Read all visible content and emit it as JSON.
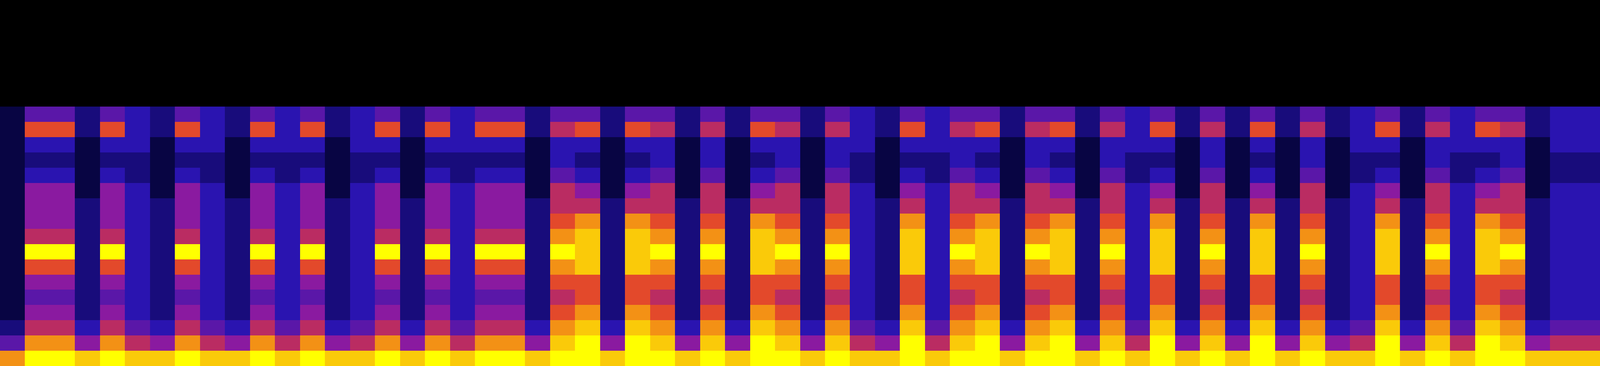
{
  "chart_data": {
    "type": "heatmap",
    "tick_labels": false,
    "zlim": [
      0,
      10
    ],
    "z": [
      [
        0,
        0,
        0,
        0,
        0,
        0,
        0,
        1,
        1,
        1,
        1,
        1,
        1,
        1,
        1,
        1,
        1,
        1,
        1,
        1,
        1,
        2,
        4,
        8
      ],
      [
        0,
        0,
        0,
        0,
        0,
        0,
        0,
        4,
        7,
        3,
        2,
        3,
        5,
        5,
        5,
        6,
        10,
        7,
        5,
        4,
        5,
        6,
        8,
        10
      ],
      [
        0,
        0,
        0,
        0,
        0,
        0,
        0,
        4,
        7,
        3,
        2,
        3,
        5,
        5,
        5,
        6,
        10,
        7,
        5,
        4,
        5,
        6,
        8,
        10
      ],
      [
        0,
        0,
        0,
        0,
        0,
        0,
        0,
        2,
        2,
        1,
        1,
        1,
        1,
        2,
        2,
        2,
        2,
        2,
        2,
        2,
        2,
        3,
        5,
        9
      ],
      [
        0,
        0,
        0,
        0,
        0,
        0,
        0,
        4,
        7,
        3,
        2,
        3,
        5,
        5,
        5,
        6,
        10,
        7,
        5,
        4,
        5,
        6,
        8,
        10
      ],
      [
        0,
        0,
        0,
        0,
        0,
        0,
        0,
        3,
        3,
        3,
        2,
        2,
        3,
        3,
        3,
        3,
        3,
        3,
        3,
        3,
        3,
        4,
        6,
        9
      ],
      [
        0,
        0,
        0,
        0,
        0,
        0,
        0,
        2,
        2,
        1,
        1,
        1,
        1,
        2,
        2,
        2,
        2,
        2,
        2,
        2,
        2,
        3,
        5,
        9
      ],
      [
        0,
        0,
        0,
        0,
        0,
        0,
        0,
        4,
        7,
        3,
        2,
        3,
        5,
        5,
        5,
        6,
        10,
        7,
        5,
        4,
        5,
        6,
        8,
        10
      ],
      [
        0,
        0,
        0,
        0,
        0,
        0,
        0,
        3,
        3,
        3,
        2,
        2,
        3,
        3,
        3,
        3,
        3,
        3,
        3,
        3,
        3,
        4,
        6,
        9
      ],
      [
        0,
        0,
        0,
        0,
        0,
        0,
        0,
        2,
        2,
        1,
        1,
        1,
        1,
        2,
        2,
        2,
        2,
        2,
        2,
        2,
        2,
        3,
        5,
        9
      ],
      [
        0,
        0,
        0,
        0,
        0,
        0,
        0,
        4,
        7,
        3,
        2,
        3,
        5,
        5,
        5,
        6,
        10,
        7,
        5,
        4,
        5,
        6,
        8,
        10
      ],
      [
        0,
        0,
        0,
        0,
        0,
        0,
        0,
        3,
        3,
        3,
        2,
        2,
        3,
        3,
        3,
        3,
        3,
        3,
        3,
        3,
        3,
        4,
        6,
        9
      ],
      [
        0,
        0,
        0,
        0,
        0,
        0,
        0,
        4,
        7,
        3,
        2,
        3,
        5,
        5,
        5,
        6,
        10,
        7,
        5,
        4,
        5,
        6,
        8,
        10
      ],
      [
        0,
        0,
        0,
        0,
        0,
        0,
        0,
        2,
        2,
        1,
        1,
        1,
        1,
        2,
        2,
        2,
        2,
        2,
        2,
        2,
        2,
        3,
        5,
        9
      ],
      [
        0,
        0,
        0,
        0,
        0,
        0,
        0,
        3,
        3,
        3,
        2,
        2,
        3,
        3,
        3,
        3,
        3,
        3,
        3,
        3,
        3,
        4,
        6,
        9
      ],
      [
        0,
        0,
        0,
        0,
        0,
        0,
        0,
        4,
        7,
        3,
        2,
        3,
        5,
        5,
        5,
        6,
        10,
        7,
        5,
        4,
        5,
        6,
        8,
        10
      ],
      [
        0,
        0,
        0,
        0,
        0,
        0,
        0,
        2,
        2,
        1,
        1,
        1,
        1,
        2,
        2,
        2,
        2,
        2,
        2,
        2,
        2,
        3,
        5,
        9
      ],
      [
        0,
        0,
        0,
        0,
        0,
        0,
        0,
        4,
        7,
        3,
        2,
        3,
        5,
        5,
        5,
        6,
        10,
        7,
        5,
        4,
        5,
        6,
        8,
        10
      ],
      [
        0,
        0,
        0,
        0,
        0,
        0,
        0,
        3,
        3,
        3,
        2,
        2,
        3,
        3,
        3,
        3,
        3,
        3,
        3,
        3,
        3,
        4,
        6,
        9
      ],
      [
        0,
        0,
        0,
        0,
        0,
        0,
        0,
        4,
        7,
        3,
        2,
        3,
        5,
        5,
        5,
        6,
        10,
        7,
        5,
        4,
        5,
        6,
        8,
        10
      ],
      [
        0,
        0,
        0,
        0,
        0,
        0,
        0,
        4,
        7,
        3,
        2,
        3,
        5,
        5,
        5,
        6,
        10,
        7,
        5,
        4,
        5,
        6,
        8,
        10
      ],
      [
        0,
        0,
        0,
        0,
        0,
        0,
        0,
        2,
        2,
        1,
        1,
        1,
        1,
        2,
        2,
        2,
        2,
        2,
        2,
        2,
        2,
        3,
        5,
        9
      ],
      [
        0,
        0,
        0,
        0,
        0,
        0,
        0,
        4,
        6,
        3,
        3,
        4,
        6,
        6,
        7,
        8,
        10,
        8,
        7,
        6,
        7,
        8,
        9,
        10
      ],
      [
        0,
        0,
        0,
        0,
        0,
        0,
        0,
        4,
        7,
        3,
        2,
        3,
        5,
        6,
        8,
        9,
        9,
        9,
        7,
        7,
        8,
        9,
        10,
        10
      ],
      [
        0,
        0,
        0,
        0,
        0,
        0,
        0,
        2,
        2,
        1,
        1,
        1,
        1,
        2,
        2,
        2,
        2,
        2,
        2,
        2,
        2,
        3,
        5,
        9
      ],
      [
        0,
        0,
        0,
        0,
        0,
        0,
        0,
        4,
        7,
        3,
        2,
        3,
        5,
        6,
        8,
        9,
        9,
        9,
        7,
        7,
        8,
        9,
        10,
        10
      ],
      [
        0,
        0,
        0,
        0,
        0,
        0,
        0,
        4,
        6,
        3,
        3,
        4,
        6,
        6,
        7,
        8,
        10,
        8,
        7,
        6,
        7,
        8,
        9,
        10
      ],
      [
        0,
        0,
        0,
        0,
        0,
        0,
        0,
        2,
        2,
        1,
        1,
        1,
        1,
        2,
        2,
        2,
        2,
        2,
        2,
        2,
        2,
        3,
        5,
        9
      ],
      [
        0,
        0,
        0,
        0,
        0,
        0,
        0,
        4,
        6,
        3,
        3,
        4,
        6,
        6,
        7,
        8,
        10,
        8,
        7,
        6,
        7,
        8,
        9,
        10
      ],
      [
        0,
        0,
        0,
        0,
        0,
        0,
        0,
        2,
        2,
        1,
        1,
        1,
        1,
        2,
        2,
        2,
        2,
        2,
        2,
        2,
        2,
        3,
        5,
        9
      ],
      [
        0,
        0,
        0,
        0,
        0,
        0,
        0,
        4,
        7,
        3,
        2,
        3,
        5,
        6,
        8,
        9,
        9,
        9,
        7,
        7,
        8,
        9,
        10,
        10
      ],
      [
        0,
        0,
        0,
        0,
        0,
        0,
        0,
        4,
        6,
        3,
        3,
        4,
        6,
        6,
        7,
        8,
        10,
        8,
        7,
        6,
        7,
        8,
        9,
        10
      ],
      [
        0,
        0,
        0,
        0,
        0,
        0,
        0,
        2,
        2,
        1,
        1,
        1,
        1,
        2,
        2,
        2,
        2,
        2,
        2,
        2,
        2,
        3,
        5,
        9
      ],
      [
        0,
        0,
        0,
        0,
        0,
        0,
        0,
        4,
        6,
        3,
        3,
        4,
        6,
        6,
        7,
        8,
        10,
        8,
        7,
        6,
        7,
        8,
        9,
        10
      ],
      [
        0,
        0,
        0,
        0,
        0,
        0,
        0,
        3,
        3,
        3,
        2,
        2,
        3,
        3,
        3,
        3,
        3,
        3,
        3,
        3,
        3,
        4,
        6,
        9
      ],
      [
        0,
        0,
        0,
        0,
        0,
        0,
        0,
        2,
        2,
        1,
        1,
        1,
        1,
        2,
        2,
        2,
        2,
        2,
        2,
        2,
        2,
        3,
        5,
        9
      ],
      [
        0,
        0,
        0,
        0,
        0,
        0,
        0,
        4,
        7,
        3,
        2,
        3,
        5,
        6,
        8,
        9,
        9,
        9,
        7,
        7,
        8,
        9,
        10,
        10
      ],
      [
        0,
        0,
        0,
        0,
        0,
        0,
        0,
        3,
        3,
        3,
        2,
        2,
        3,
        3,
        3,
        3,
        3,
        3,
        3,
        3,
        3,
        4,
        6,
        9
      ],
      [
        0,
        0,
        0,
        0,
        0,
        0,
        0,
        4,
        6,
        3,
        3,
        4,
        6,
        6,
        7,
        8,
        10,
        8,
        7,
        6,
        7,
        8,
        9,
        10
      ],
      [
        0,
        0,
        0,
        0,
        0,
        0,
        0,
        4,
        7,
        3,
        2,
        3,
        5,
        6,
        8,
        9,
        9,
        9,
        7,
        7,
        8,
        9,
        10,
        10
      ],
      [
        0,
        0,
        0,
        0,
        0,
        0,
        0,
        2,
        2,
        1,
        1,
        1,
        1,
        2,
        2,
        2,
        2,
        2,
        2,
        2,
        2,
        3,
        5,
        9
      ],
      [
        0,
        0,
        0,
        0,
        0,
        0,
        0,
        4,
        6,
        3,
        3,
        4,
        6,
        6,
        7,
        8,
        10,
        8,
        7,
        6,
        7,
        8,
        9,
        10
      ],
      [
        0,
        0,
        0,
        0,
        0,
        0,
        0,
        4,
        7,
        3,
        2,
        3,
        5,
        6,
        8,
        9,
        9,
        9,
        7,
        7,
        8,
        9,
        10,
        10
      ],
      [
        0,
        0,
        0,
        0,
        0,
        0,
        0,
        2,
        2,
        1,
        1,
        1,
        1,
        2,
        2,
        2,
        2,
        2,
        2,
        2,
        2,
        3,
        5,
        9
      ],
      [
        0,
        0,
        0,
        0,
        0,
        0,
        0,
        4,
        6,
        3,
        3,
        4,
        6,
        6,
        7,
        8,
        10,
        8,
        7,
        6,
        7,
        8,
        9,
        10
      ],
      [
        0,
        0,
        0,
        0,
        0,
        0,
        0,
        3,
        3,
        3,
        2,
        2,
        3,
        3,
        3,
        3,
        3,
        3,
        3,
        3,
        3,
        4,
        6,
        9
      ],
      [
        0,
        0,
        0,
        0,
        0,
        0,
        0,
        4,
        7,
        3,
        2,
        3,
        5,
        6,
        8,
        9,
        9,
        9,
        7,
        7,
        8,
        9,
        10,
        10
      ],
      [
        0,
        0,
        0,
        0,
        0,
        0,
        0,
        2,
        2,
        1,
        1,
        1,
        1,
        2,
        2,
        2,
        2,
        2,
        2,
        2,
        2,
        3,
        5,
        9
      ],
      [
        0,
        0,
        0,
        0,
        0,
        0,
        0,
        4,
        6,
        3,
        3,
        4,
        6,
        6,
        7,
        8,
        10,
        8,
        7,
        6,
        7,
        8,
        9,
        10
      ],
      [
        0,
        0,
        0,
        0,
        0,
        0,
        0,
        2,
        2,
        1,
        1,
        1,
        1,
        2,
        2,
        2,
        2,
        2,
        2,
        2,
        2,
        3,
        5,
        9
      ],
      [
        0,
        0,
        0,
        0,
        0,
        0,
        0,
        4,
        7,
        3,
        2,
        3,
        5,
        6,
        8,
        9,
        9,
        9,
        7,
        7,
        8,
        9,
        10,
        10
      ],
      [
        0,
        0,
        0,
        0,
        0,
        0,
        0,
        2,
        2,
        1,
        1,
        1,
        1,
        2,
        2,
        2,
        2,
        2,
        2,
        2,
        2,
        3,
        5,
        9
      ],
      [
        0,
        0,
        0,
        0,
        0,
        0,
        0,
        4,
        6,
        3,
        3,
        4,
        6,
        6,
        7,
        8,
        10,
        8,
        7,
        6,
        7,
        8,
        9,
        10
      ],
      [
        0,
        0,
        0,
        0,
        0,
        0,
        0,
        2,
        2,
        1,
        1,
        1,
        1,
        2,
        2,
        2,
        2,
        2,
        2,
        2,
        2,
        3,
        5,
        9
      ],
      [
        0,
        0,
        0,
        0,
        0,
        0,
        0,
        3,
        3,
        3,
        2,
        2,
        3,
        3,
        3,
        3,
        3,
        3,
        3,
        3,
        3,
        4,
        6,
        9
      ],
      [
        0,
        0,
        0,
        0,
        0,
        0,
        0,
        4,
        7,
        3,
        2,
        3,
        5,
        6,
        8,
        9,
        9,
        9,
        7,
        7,
        8,
        9,
        10,
        10
      ],
      [
        0,
        0,
        0,
        0,
        0,
        0,
        0,
        2,
        2,
        1,
        1,
        1,
        1,
        2,
        2,
        2,
        2,
        2,
        2,
        2,
        2,
        3,
        5,
        9
      ],
      [
        0,
        0,
        0,
        0,
        0,
        0,
        0,
        4,
        6,
        3,
        3,
        4,
        6,
        6,
        7,
        8,
        10,
        8,
        7,
        6,
        7,
        8,
        9,
        10
      ],
      [
        0,
        0,
        0,
        0,
        0,
        0,
        0,
        3,
        3,
        3,
        2,
        2,
        3,
        3,
        3,
        3,
        3,
        3,
        3,
        3,
        3,
        4,
        6,
        9
      ],
      [
        0,
        0,
        0,
        0,
        0,
        0,
        0,
        4,
        7,
        3,
        2,
        3,
        5,
        6,
        8,
        9,
        9,
        9,
        7,
        7,
        8,
        9,
        10,
        10
      ],
      [
        0,
        0,
        0,
        0,
        0,
        0,
        0,
        4,
        6,
        3,
        3,
        4,
        6,
        6,
        7,
        8,
        10,
        8,
        7,
        6,
        7,
        8,
        9,
        10
      ],
      [
        0,
        0,
        0,
        0,
        0,
        0,
        0,
        2,
        2,
        1,
        1,
        1,
        1,
        2,
        2,
        2,
        2,
        2,
        2,
        2,
        2,
        3,
        5,
        9
      ],
      [
        0,
        0,
        0,
        0,
        0,
        0,
        0,
        3,
        3,
        3,
        2,
        2,
        3,
        3,
        3,
        3,
        3,
        3,
        3,
        3,
        3,
        4,
        6,
        9
      ],
      [
        0,
        0,
        0,
        0,
        0,
        0,
        0,
        3,
        3,
        3,
        2,
        2,
        3,
        3,
        3,
        3,
        3,
        3,
        3,
        3,
        3,
        4,
        6,
        9
      ]
    ]
  }
}
